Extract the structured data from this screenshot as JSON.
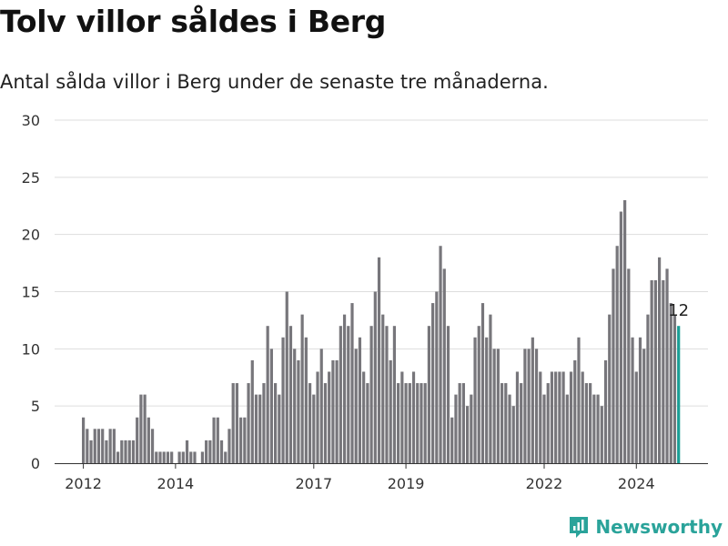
{
  "title": "Tolv villor såldes i Berg",
  "subtitle": "Antal sålda villor i Berg under de senaste tre månaderna.",
  "brand": {
    "name": "Newsworthy",
    "icon": "bar-chart-icon",
    "color": "#2aa39a"
  },
  "chart_data": {
    "type": "bar",
    "start": "2012-01",
    "values": [
      4,
      3,
      2,
      3,
      3,
      3,
      2,
      3,
      3,
      1,
      2,
      2,
      2,
      2,
      4,
      6,
      6,
      4,
      3,
      1,
      1,
      1,
      1,
      1,
      0,
      1,
      1,
      2,
      1,
      1,
      0,
      1,
      2,
      2,
      4,
      4,
      2,
      1,
      3,
      7,
      7,
      4,
      4,
      7,
      9,
      6,
      6,
      7,
      12,
      10,
      7,
      6,
      11,
      15,
      12,
      10,
      9,
      13,
      11,
      7,
      6,
      8,
      10,
      7,
      8,
      9,
      9,
      12,
      13,
      12,
      14,
      10,
      11,
      8,
      7,
      12,
      15,
      18,
      13,
      12,
      9,
      12,
      7,
      8,
      7,
      7,
      8,
      7,
      7,
      7,
      12,
      14,
      15,
      19,
      17,
      12,
      4,
      6,
      7,
      7,
      5,
      6,
      11,
      12,
      14,
      11,
      13,
      10,
      10,
      7,
      7,
      6,
      5,
      8,
      7,
      10,
      10,
      11,
      10,
      8,
      6,
      7,
      8,
      8,
      8,
      8,
      6,
      8,
      9,
      11,
      8,
      7,
      7,
      6,
      6,
      5,
      9,
      13,
      17,
      19,
      22,
      23,
      17,
      11,
      8,
      11,
      10,
      13,
      16,
      16,
      18,
      16,
      17,
      14,
      13,
      12
    ],
    "highlight_last": true,
    "highlight_color": "#1a9e96",
    "bar_color": "#77767b",
    "last_label": "12",
    "ylim": [
      0,
      30
    ],
    "yticks": [
      0,
      5,
      10,
      15,
      20,
      25,
      30
    ],
    "xticks": [
      {
        "label": "2012",
        "index": 0
      },
      {
        "label": "2014",
        "index": 24
      },
      {
        "label": "2017",
        "index": 60
      },
      {
        "label": "2019",
        "index": 84
      },
      {
        "label": "2022",
        "index": 120
      },
      {
        "label": "2024",
        "index": 144
      }
    ],
    "grid": true,
    "xlabel": "",
    "ylabel": ""
  }
}
